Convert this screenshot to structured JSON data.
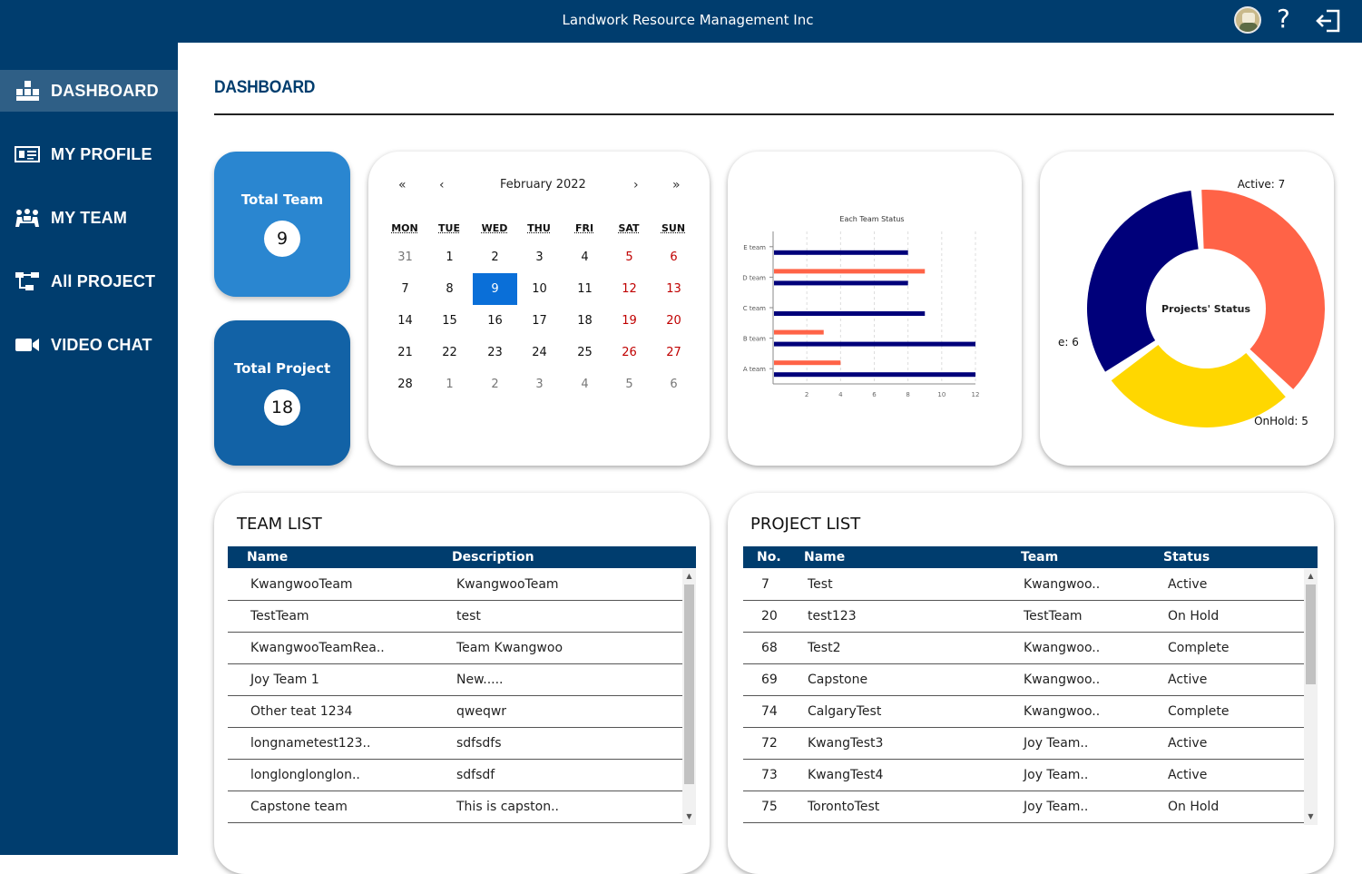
{
  "app": {
    "title": "Landwork Resource Management Inc",
    "help": "?"
  },
  "sidebar": {
    "items": [
      {
        "label": "DASHBOARD",
        "icon": "dashboard-icon"
      },
      {
        "label": "MY PROFILE",
        "icon": "profile-card-icon"
      },
      {
        "label": "MY TEAM",
        "icon": "team-icon"
      },
      {
        "label": "All PROJECT",
        "icon": "project-tree-icon"
      },
      {
        "label": "VIDEO CHAT",
        "icon": "video-camera-icon"
      }
    ]
  },
  "page": {
    "title": "DASHBOARD"
  },
  "stats": {
    "total_team": {
      "label": "Total Team",
      "value": "9"
    },
    "total_project": {
      "label": "Total Project",
      "value": "18"
    }
  },
  "calendar": {
    "month": "February 2022",
    "nav": {
      "first": "«",
      "prev": "‹",
      "next": "›",
      "last": "»"
    },
    "dow": [
      "MON",
      "TUE",
      "WED",
      "THU",
      "FRI",
      "SAT",
      "SUN"
    ],
    "weeks": [
      [
        "31",
        "1",
        "2",
        "3",
        "4",
        "5",
        "6"
      ],
      [
        "7",
        "8",
        "9",
        "10",
        "11",
        "12",
        "13"
      ],
      [
        "14",
        "15",
        "16",
        "17",
        "18",
        "19",
        "20"
      ],
      [
        "21",
        "22",
        "23",
        "24",
        "25",
        "26",
        "27"
      ],
      [
        "28",
        "1",
        "2",
        "3",
        "4",
        "5",
        "6"
      ]
    ],
    "selected": "9"
  },
  "chart_data": [
    {
      "type": "bar",
      "orientation": "horizontal",
      "title": "Each Team Status",
      "categories": [
        "A team",
        "B team",
        "C team",
        "D team",
        "E team"
      ],
      "series": [
        {
          "values": [
            12,
            12,
            9,
            8,
            8
          ],
          "color": "#00007a"
        },
        {
          "values": [
            4,
            3,
            0,
            9,
            0
          ],
          "color": "#ff6347"
        }
      ],
      "xlim": [
        0,
        12
      ],
      "xticks": [
        "2",
        "4",
        "6",
        "8",
        "10",
        "12"
      ],
      "grid": true
    },
    {
      "type": "pie",
      "title": "Projects' Status",
      "slices": [
        {
          "label": "Active: 7",
          "value": 7,
          "color": "#ff6347"
        },
        {
          "label": "OnHold: 5",
          "value": 5,
          "color": "#ffd700"
        },
        {
          "label": "e: 6",
          "value": 6,
          "color": "#00007a"
        }
      ]
    }
  ],
  "team_list": {
    "title": "TEAM LIST",
    "columns": [
      "Name",
      "Description"
    ],
    "rows": [
      [
        "KwangwooTeam",
        "KwangwooTeam"
      ],
      [
        "TestTeam",
        "test"
      ],
      [
        "KwangwooTeamRea..",
        "Team Kwangwoo"
      ],
      [
        "Joy Team 1",
        "New....."
      ],
      [
        "Other teat 1234",
        "qweqwr"
      ],
      [
        "longnametest123..",
        "sdfsdfs"
      ],
      [
        "longlonglonglon..",
        "sdfsdf"
      ],
      [
        "Capstone team",
        "This is capston.."
      ]
    ]
  },
  "project_list": {
    "title": "PROJECT LIST",
    "columns": [
      "No.",
      "Name",
      "Team",
      "Status"
    ],
    "rows": [
      [
        "7",
        "Test",
        "Kwangwoo..",
        "Active"
      ],
      [
        "20",
        "test123",
        "TestTeam",
        "On Hold"
      ],
      [
        "68",
        "Test2",
        "Kwangwoo..",
        "Complete"
      ],
      [
        "69",
        "Capstone",
        "Kwangwoo..",
        "Active"
      ],
      [
        "74",
        "CalgaryTest",
        "Kwangwoo..",
        "Complete"
      ],
      [
        "72",
        "KwangTest3",
        "Joy Team..",
        "Active"
      ],
      [
        "73",
        "KwangTest4",
        "Joy Team..",
        "Active"
      ],
      [
        "75",
        "TorontoTest",
        "Joy Team..",
        "On Hold"
      ]
    ]
  }
}
